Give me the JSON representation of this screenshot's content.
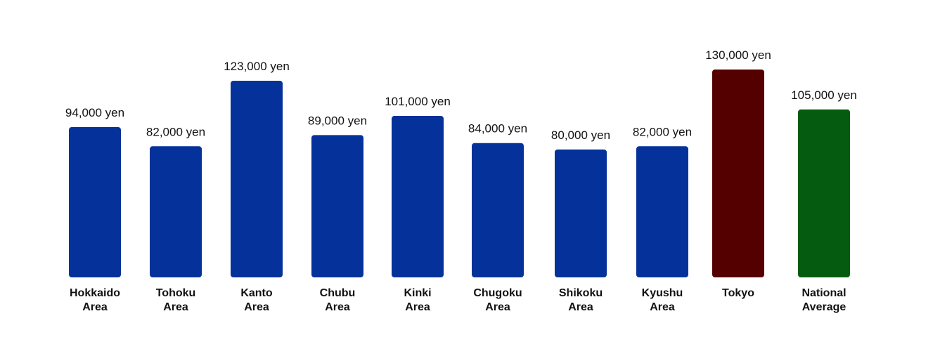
{
  "chart_data": {
    "type": "bar",
    "title": "",
    "xlabel": "",
    "ylabel": "",
    "unit": "yen",
    "ylim": [
      0,
      130000
    ],
    "grid": false,
    "legend": "none",
    "bars": [
      {
        "category_lines": [
          "Hokkaido",
          "Area"
        ],
        "value": 94000,
        "value_label": "94,000 yen",
        "color": "#05329a"
      },
      {
        "category_lines": [
          "Tohoku",
          "Area"
        ],
        "value": 82000,
        "value_label": "82,000 yen",
        "color": "#05329a"
      },
      {
        "category_lines": [
          "Kanto",
          "Area"
        ],
        "value": 123000,
        "value_label": "123,000 yen",
        "color": "#05329a"
      },
      {
        "category_lines": [
          "Chubu",
          "Area"
        ],
        "value": 89000,
        "value_label": "89,000 yen",
        "color": "#05329a"
      },
      {
        "category_lines": [
          "Kinki",
          "Area"
        ],
        "value": 101000,
        "value_label": "101,000 yen",
        "color": "#05329a"
      },
      {
        "category_lines": [
          "Chugoku",
          "Area"
        ],
        "value": 84000,
        "value_label": "84,000 yen",
        "color": "#05329a"
      },
      {
        "category_lines": [
          "Shikoku",
          "Area"
        ],
        "value": 80000,
        "value_label": "80,000 yen",
        "color": "#05329a"
      },
      {
        "category_lines": [
          "Kyushu",
          "Area"
        ],
        "value": 82000,
        "value_label": "82,000 yen",
        "color": "#05329a"
      },
      {
        "category_lines": [
          "Tokyo"
        ],
        "value": 130000,
        "value_label": "130,000 yen",
        "color": "#540000"
      },
      {
        "category_lines": [
          "National",
          "Average"
        ],
        "value": 105000,
        "value_label": "105,000 yen",
        "color": "#055c10"
      }
    ]
  }
}
